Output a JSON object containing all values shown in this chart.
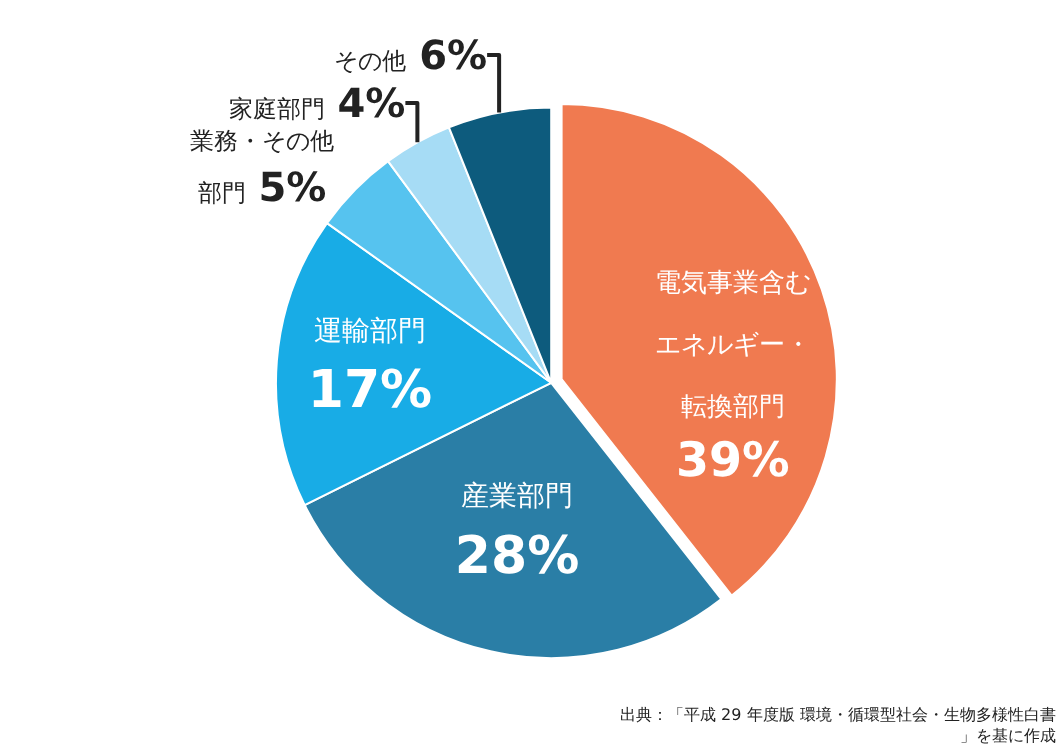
{
  "chart_data": {
    "type": "pie",
    "categories": [
      "電気事業含むエネルギー・転換部門",
      "産業部門",
      "運輸部門",
      "業務・その他部門",
      "家庭部門",
      "その他"
    ],
    "values": [
      39,
      28,
      17,
      5,
      4,
      6
    ],
    "value_labels": [
      "39%",
      "28%",
      "17%",
      "5%",
      "4%",
      "6%"
    ],
    "colors": [
      "#f07a50",
      "#2a7ea6",
      "#18ace6",
      "#56c3ef",
      "#a6dcf5",
      "#0d5b7d"
    ],
    "annotations": [
      "出典：「平成 29 年度版 環境・循環型社会・生物多様性白書」を基に作成"
    ]
  }
}
